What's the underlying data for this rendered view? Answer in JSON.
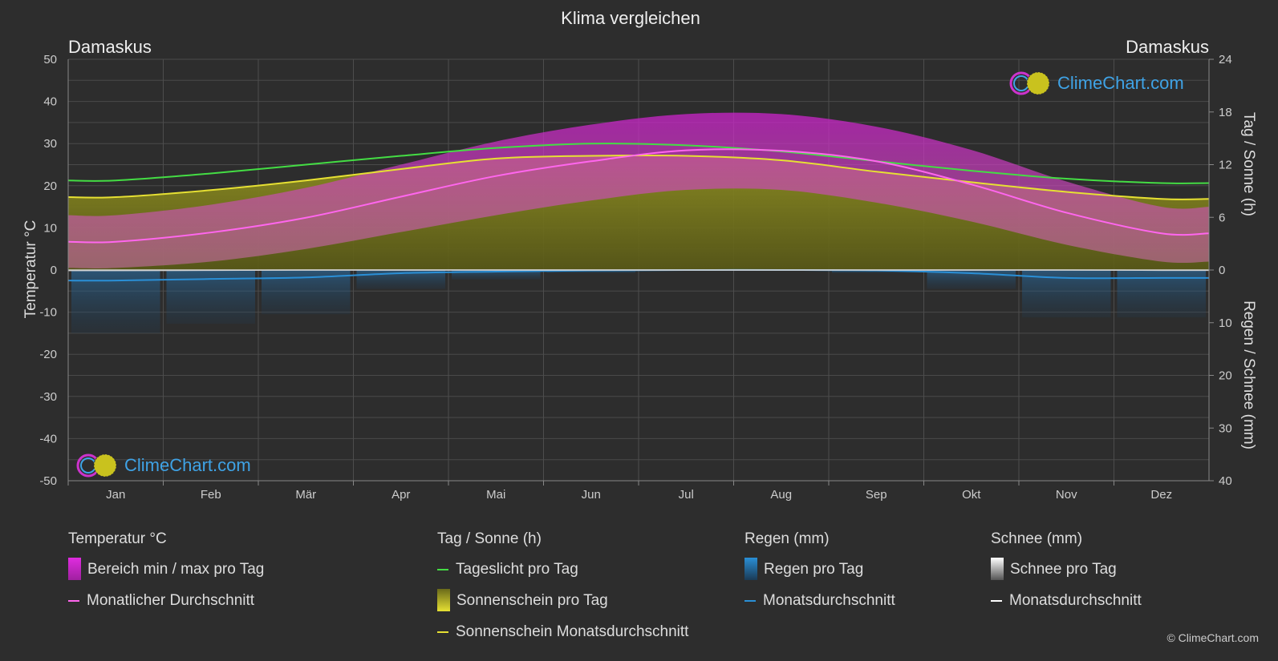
{
  "chart_data": {
    "type": "area",
    "title": "Klima vergleichen",
    "location_left": "Damaskus",
    "location_right": "Damaskus",
    "y_left_label": "Temperatur °C",
    "y_right_top_label": "Tag / Sonne (h)",
    "y_right_bottom_label": "Regen / Schnee (mm)",
    "y_left_ticks": [
      "50",
      "40",
      "30",
      "20",
      "10",
      "0",
      "-10",
      "-20",
      "-30",
      "-40",
      "-50"
    ],
    "y_right_top_ticks": [
      "24",
      "18",
      "12",
      "6",
      "0"
    ],
    "y_right_bottom_ticks": [
      "10",
      "20",
      "30",
      "40"
    ],
    "months": [
      "Jan",
      "Feb",
      "Mär",
      "Apr",
      "Mai",
      "Jun",
      "Jul",
      "Aug",
      "Sep",
      "Okt",
      "Nov",
      "Dez"
    ],
    "temp_ylim": [
      -50,
      50
    ],
    "sun_ylim": [
      0,
      24
    ],
    "rain_ylim": [
      0,
      40
    ],
    "series": [
      {
        "key": "temp_mean",
        "name": "Monatlicher Durchschnitt",
        "color": "#ff66ee",
        "values": [
          6.7,
          8.9,
          12.4,
          17.4,
          22.3,
          25.8,
          28.4,
          28.3,
          25.8,
          20.3,
          13.6,
          8.7
        ]
      },
      {
        "key": "temp_max",
        "color": "#cc33cc",
        "values": [
          13,
          15.5,
          19.5,
          25,
          30.5,
          34.5,
          37,
          37,
          34,
          28.5,
          21,
          15
        ]
      },
      {
        "key": "temp_min",
        "color": "#cc33cc",
        "values": [
          0.5,
          2,
          5,
          9,
          13,
          16.5,
          19,
          19,
          16,
          11.5,
          6,
          2
        ]
      },
      {
        "key": "daylight",
        "name": "Tageslicht pro Tag",
        "color": "#44dd44",
        "values": [
          10.2,
          11.0,
          12.0,
          13.0,
          13.9,
          14.4,
          14.2,
          13.5,
          12.4,
          11.3,
          10.4,
          9.9
        ]
      },
      {
        "key": "sunshine",
        "name": "Sonnenschein Monatsdurchschnitt",
        "color": "#e6e033",
        "values": [
          8.3,
          9.1,
          10.2,
          11.5,
          12.7,
          13.0,
          13.0,
          12.5,
          11.2,
          10.0,
          8.9,
          8.1
        ]
      },
      {
        "key": "rain",
        "name": "Monatsdurchschnitt",
        "color": "#2a8fd6",
        "values": [
          2.0,
          1.7,
          1.4,
          0.6,
          0.3,
          0.1,
          0.0,
          0.0,
          0.1,
          0.6,
          1.5,
          1.5
        ]
      },
      {
        "key": "snow",
        "name": "Monatsdurchschnitt",
        "color": "#ffffff",
        "values": [
          0.1,
          0.05,
          0,
          0,
          0,
          0,
          0,
          0,
          0,
          0,
          0,
          0.05
        ]
      }
    ],
    "grid": true
  },
  "legend": {
    "temp": {
      "title": "Temperatur °C",
      "range": "Bereich min / max pro Tag",
      "mean": "Monatlicher Durchschnitt"
    },
    "sun": {
      "title": "Tag / Sonne (h)",
      "daylight": "Tageslicht pro Tag",
      "sunshine": "Sonnenschein pro Tag",
      "sunshine_mean": "Sonnenschein Monatsdurchschnitt"
    },
    "rain": {
      "title": "Regen (mm)",
      "daily": "Regen pro Tag",
      "mean": "Monatsdurchschnitt"
    },
    "snow": {
      "title": "Schnee (mm)",
      "daily": "Schnee pro Tag",
      "mean": "Monatsdurchschnitt"
    }
  },
  "branding": {
    "logo_text": "ClimeChart.com",
    "copyright": "© ClimeChart.com"
  },
  "colors": {
    "background": "#2d2d2d",
    "temp_range": "#cc33cc",
    "sunshine_fill": "#8a8a1e",
    "rain": "#2a8fd6",
    "daylight": "#44dd44",
    "sunshine_line": "#e6e033",
    "temp_mean": "#ff66ee"
  }
}
